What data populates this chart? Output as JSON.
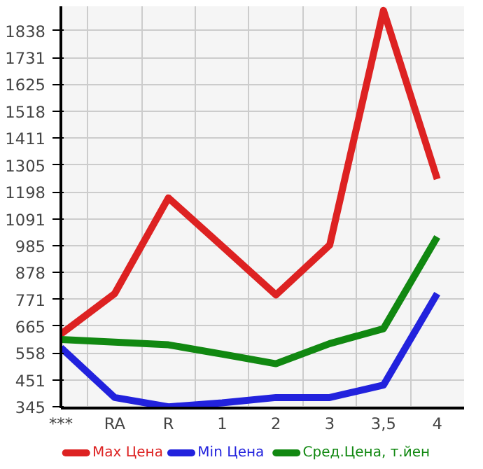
{
  "chart_data": {
    "type": "line",
    "categories": [
      "***",
      "RA",
      "R",
      "1",
      "2",
      "3",
      "3,5",
      "4"
    ],
    "series": [
      {
        "name": "Max Цена",
        "color": "#dd2222",
        "values": [
          634,
          794,
          1174,
          982,
          789,
          987,
          1918,
          1249
        ]
      },
      {
        "name": "Min Цена",
        "color": "#2222dd",
        "values": [
          580,
          382,
          345,
          361,
          382,
          382,
          431,
          794
        ]
      },
      {
        "name": "Сред.Цена, т.йен",
        "color": "#118811",
        "values": [
          612,
          602,
          591,
          554,
          516,
          596,
          655,
          1019
        ]
      }
    ],
    "ylim": [
      340,
      1934
    ],
    "yticks": [
      345,
      451,
      558,
      665,
      771,
      878,
      985,
      1091,
      1198,
      1305,
      1411,
      1518,
      1625,
      1731,
      1838
    ],
    "grid": true,
    "legend": "bottom",
    "marker": "none",
    "line_style": "solid"
  }
}
